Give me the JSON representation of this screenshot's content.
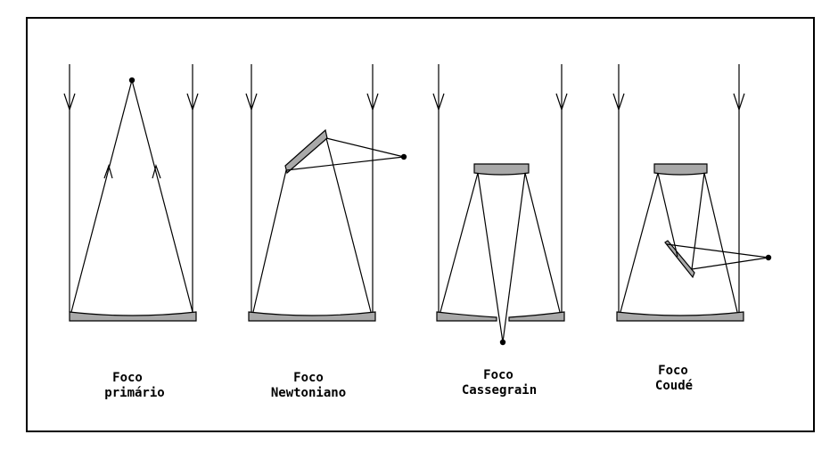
{
  "diagram": {
    "panels": [
      {
        "id": "primario",
        "line1": "Foco",
        "line2": "primário"
      },
      {
        "id": "newtoniano",
        "line1": "Foco",
        "line2": "Newtoniano"
      },
      {
        "id": "cassegrain",
        "line1": "Foco",
        "line2": "Cassegrain"
      },
      {
        "id": "coude",
        "line1": "Foco",
        "line2": "Coudé"
      }
    ]
  }
}
